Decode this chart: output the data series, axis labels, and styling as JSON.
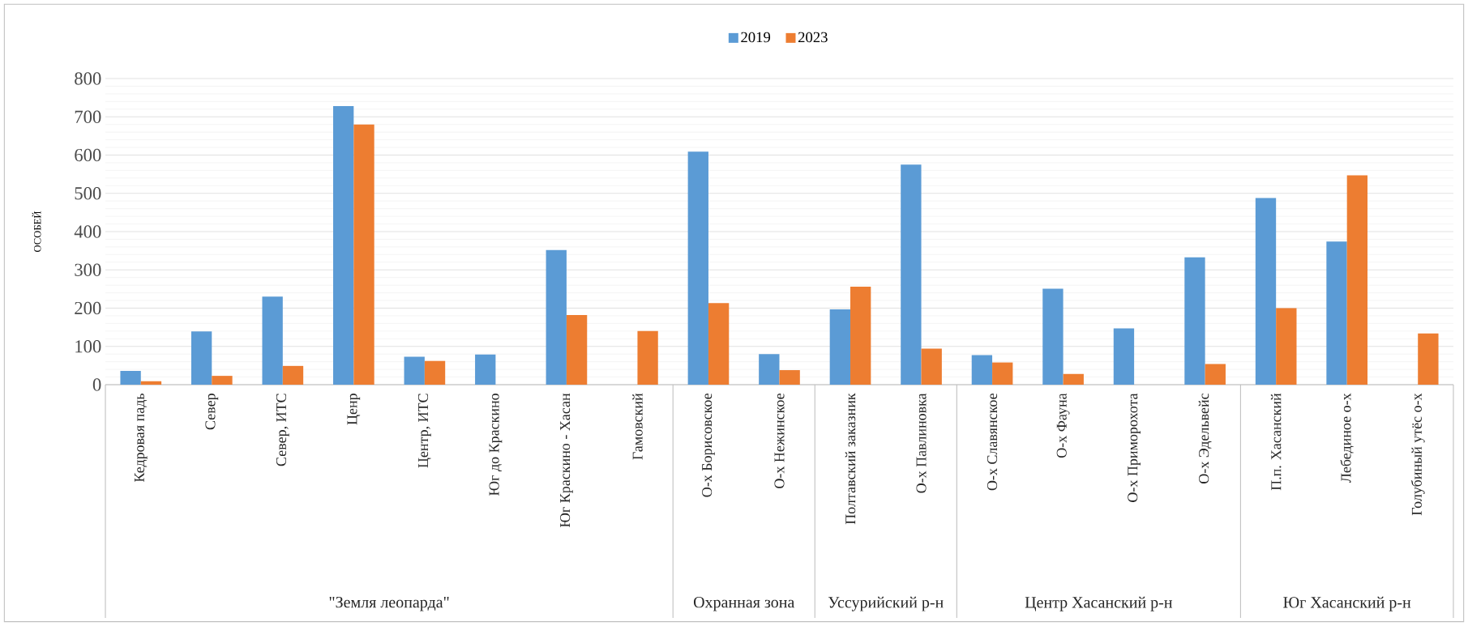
{
  "chart_data": {
    "type": "bar",
    "ylabel": "ОСОБЕЙ",
    "categories": [
      "Кедровая падь",
      "Север",
      "Север, ИТС",
      "Ценр",
      "Центр, ИТС",
      "Юг до Краскино",
      "Юг Краскино - Хасан",
      "Гамовский",
      "О-х Борисовское",
      "О-х Нежинское",
      "Полтавский заказник",
      "О-х Павлиновка",
      "О-х Славянское",
      "О-х Фауна",
      "О-х Приморохота",
      "О-х Эдельвейс",
      "П.п. Хасанский",
      "Лебединое о-х",
      "Голубиный утёс о-х"
    ],
    "series": [
      {
        "name": "2019",
        "color": "#5b9bd5",
        "values": [
          36,
          139,
          230,
          728,
          73,
          79,
          352,
          null,
          609,
          80,
          197,
          575,
          77,
          251,
          147,
          333,
          488,
          374,
          null
        ]
      },
      {
        "name": "2023",
        "color": "#ed7d31",
        "values": [
          9,
          23,
          49,
          680,
          62,
          null,
          182,
          140,
          213,
          38,
          256,
          94,
          58,
          28,
          null,
          54,
          200,
          547,
          134
        ]
      }
    ],
    "annotations": [
      "\"Земля леопарда\"",
      "Охранная зона",
      "Уссурийский р-н",
      "Центр Хасанский р-н",
      "Юг Хасанский р-н"
    ],
    "ylim": [
      0,
      800
    ],
    "yticks": [
      0,
      100,
      200,
      300,
      400,
      500,
      600,
      700,
      800
    ],
    "grid": "y",
    "legend": "top"
  }
}
